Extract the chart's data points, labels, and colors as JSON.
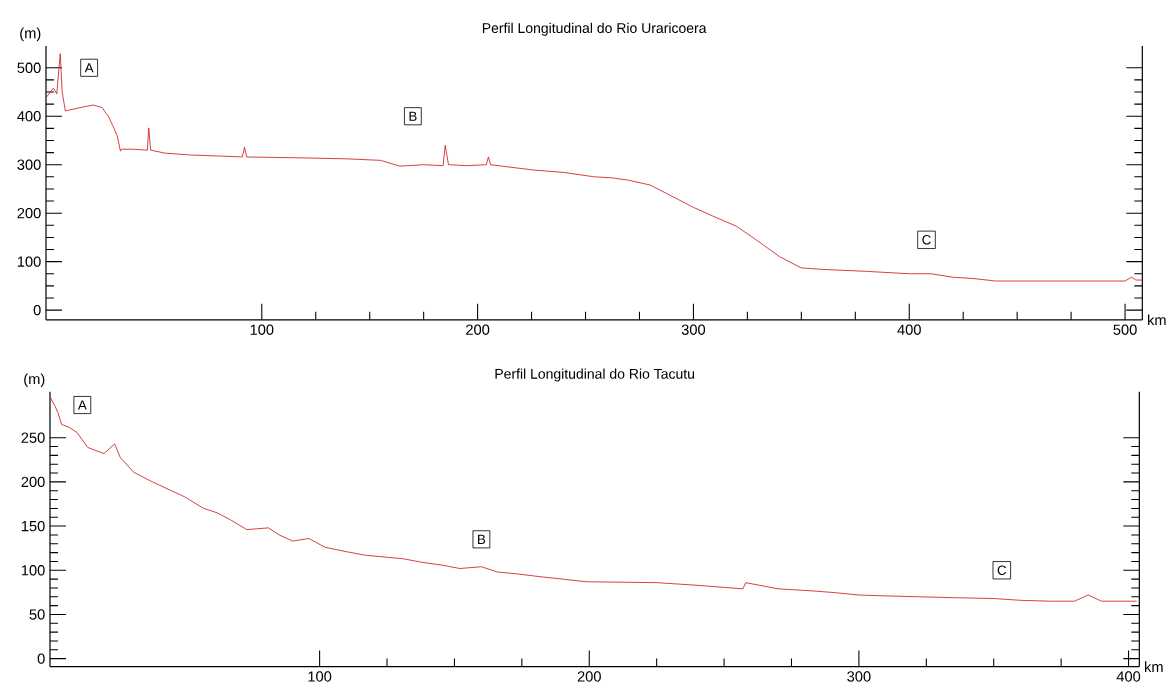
{
  "chart_data": [
    {
      "type": "line",
      "title": "Perfil Longitudinal do Rio Uraricoera",
      "xlabel": "km",
      "ylabel": "(m)",
      "color": "#cc1111",
      "xlim": [
        0,
        508
      ],
      "ylim": [
        -20,
        545
      ],
      "xticks": [
        100,
        200,
        300,
        400,
        500
      ],
      "yticks": [
        0,
        100,
        200,
        300,
        400,
        500
      ],
      "x": [
        0,
        2,
        3.5,
        5,
        6.6,
        7.5,
        9,
        13,
        17,
        22,
        26,
        29,
        31,
        33,
        34.5,
        35,
        40,
        47,
        47.6,
        48.5,
        55,
        67,
        80,
        91,
        92,
        93,
        120,
        140,
        155,
        164,
        175,
        184,
        185,
        186.5,
        195,
        204,
        205,
        206,
        215,
        226,
        240,
        254,
        262,
        270,
        280,
        290,
        300,
        310,
        320,
        330,
        340,
        350,
        360,
        380,
        400,
        410,
        420,
        430,
        440,
        500,
        503,
        505,
        508
      ],
      "values": [
        438,
        450,
        458,
        446,
        529,
        450,
        411,
        415,
        419,
        423,
        418,
        399,
        380,
        360,
        328,
        332,
        332,
        330,
        376,
        330,
        324,
        320,
        318,
        316,
        336,
        316,
        314,
        312,
        309,
        297,
        300,
        298,
        340,
        300,
        298,
        300,
        316,
        300,
        295,
        289,
        284,
        275,
        273,
        268,
        258,
        235,
        212,
        192,
        173,
        142,
        110,
        87,
        84,
        80,
        75,
        75,
        68,
        65,
        60,
        60,
        68,
        62,
        62
      ],
      "annotations": [
        {
          "text": "A",
          "x": 20,
          "y": 500
        },
        {
          "text": "B",
          "x": 170,
          "y": 400
        },
        {
          "text": "C",
          "x": 408,
          "y": 145
        }
      ]
    },
    {
      "type": "line",
      "title": "Perfil Longitudinal do Rio Tacutu",
      "xlabel": "km",
      "ylabel": "(m)",
      "color": "#cc1111",
      "xlim": [
        0,
        404
      ],
      "ylim": [
        -9,
        302
      ],
      "xticks": [
        100,
        200,
        300,
        400
      ],
      "yticks": [
        0,
        50,
        100,
        150,
        200,
        250
      ],
      "x": [
        0,
        2,
        3,
        4.3,
        7,
        10,
        14,
        20,
        24,
        26,
        31,
        38,
        45,
        50,
        57,
        62,
        67,
        73,
        81,
        85,
        90,
        96,
        102,
        110,
        117,
        124,
        131,
        138,
        145,
        152,
        160,
        166,
        173,
        181,
        190,
        199,
        225,
        240,
        257,
        258,
        270,
        281,
        290,
        300,
        310,
        322,
        335,
        350,
        360,
        371,
        380,
        385,
        390,
        403
      ],
      "values": [
        296,
        285,
        278,
        265,
        262,
        256,
        239,
        232,
        243,
        228,
        211,
        200,
        190,
        183,
        170,
        165,
        157,
        146,
        148,
        140,
        133,
        136,
        126,
        121,
        117,
        115,
        113,
        109,
        106,
        102,
        104,
        98,
        96,
        93,
        90,
        87,
        86,
        83,
        79,
        86,
        79,
        77,
        75,
        72,
        71,
        70,
        69,
        68,
        66,
        65,
        65,
        72,
        65,
        65
      ],
      "annotations": [
        {
          "text": "A",
          "x": 12,
          "y": 287
        },
        {
          "text": "B",
          "x": 160,
          "y": 135
        },
        {
          "text": "C",
          "x": 353,
          "y": 100
        }
      ]
    }
  ]
}
